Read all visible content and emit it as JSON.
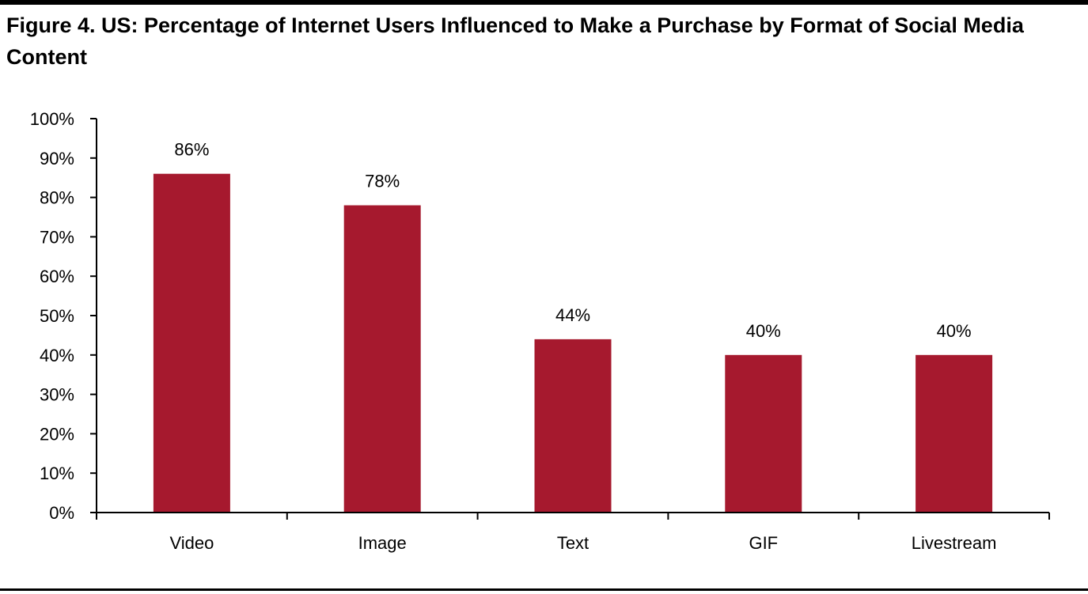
{
  "figure": {
    "title": "Figure 4. US: Percentage of Internet Users Influenced to Make a Purchase by Format of Social Media Content"
  },
  "chart_data": {
    "type": "bar",
    "categories": [
      "Video",
      "Image",
      "Text",
      "GIF",
      "Livestream"
    ],
    "values": [
      86,
      78,
      44,
      40,
      40
    ],
    "data_labels": [
      "86%",
      "78%",
      "44%",
      "40%",
      "40%"
    ],
    "ylim": [
      0,
      100
    ],
    "ytick_values": [
      0,
      10,
      20,
      30,
      40,
      50,
      60,
      70,
      80,
      90,
      100
    ],
    "ytick_labels": [
      "0%",
      "10%",
      "20%",
      "30%",
      "40%",
      "50%",
      "60%",
      "70%",
      "80%",
      "90%",
      "100%"
    ],
    "bar_color": "#A6192E",
    "grid": false,
    "legend": "none"
  }
}
